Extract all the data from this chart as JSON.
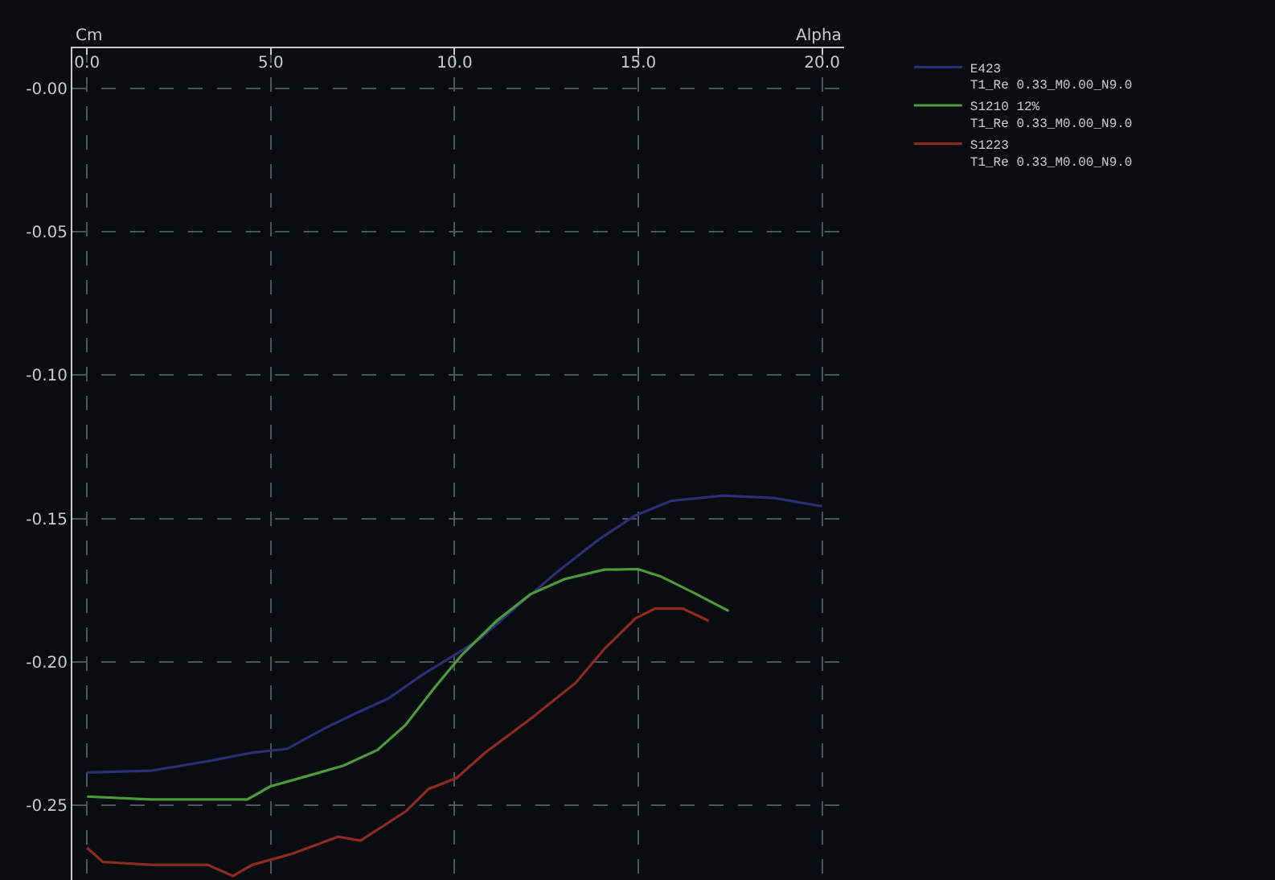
{
  "chart_data": {
    "type": "line",
    "xlabel": "Alpha",
    "ylabel": "Cm",
    "xlim": [
      -0.4,
      20.6
    ],
    "ylim": [
      -0.276,
      0.014
    ],
    "xticks": [
      {
        "value": 0,
        "label": "0.0"
      },
      {
        "value": 5,
        "label": "5.0"
      },
      {
        "value": 10,
        "label": "10.0"
      },
      {
        "value": 15,
        "label": "15.0"
      },
      {
        "value": 20,
        "label": "20.0"
      }
    ],
    "yticks": [
      {
        "value": 0,
        "label": "-0.00"
      },
      {
        "value": -0.05,
        "label": "-0.05"
      },
      {
        "value": -0.1,
        "label": "-0.10"
      },
      {
        "value": -0.15,
        "label": "-0.15"
      },
      {
        "value": -0.2,
        "label": "-0.20"
      },
      {
        "value": -0.25,
        "label": "-0.25"
      }
    ],
    "grid": true,
    "legend": "right",
    "marker": "none",
    "line_style": "solid",
    "series": [
      {
        "name": "E423\nT1_Re 0.33_M0.00_N9.0",
        "color": "#2e2e78",
        "x": [
          0,
          1.74,
          3.28,
          4.5,
          5.44,
          6.5,
          7.29,
          8.2,
          9.14,
          10.06,
          10.68,
          11.76,
          12.83,
          13.91,
          14.9,
          15.9,
          17.3,
          18.7,
          20
        ],
        "values": [
          -0.2385,
          -0.2379,
          -0.2346,
          -0.2316,
          -0.2303,
          -0.2229,
          -0.218,
          -0.2127,
          -0.2043,
          -0.1971,
          -0.192,
          -0.1799,
          -0.1682,
          -0.1574,
          -0.149,
          -0.1438,
          -0.142,
          -0.1428,
          -0.1457
        ]
      },
      {
        "name": "S1210 12%\nT1_Re 0.33_M0.00_N9.0",
        "color": "#4c9a3c",
        "x": [
          0,
          1.74,
          4.36,
          4.98,
          6.06,
          6.98,
          7.9,
          8.67,
          9.44,
          10.2,
          11.14,
          12.06,
          12.99,
          14.07,
          14.99,
          15.6,
          16.53,
          17.46
        ],
        "values": [
          -0.2469,
          -0.2479,
          -0.2479,
          -0.2434,
          -0.2395,
          -0.2361,
          -0.2307,
          -0.2219,
          -0.2092,
          -0.1975,
          -0.1857,
          -0.1764,
          -0.1711,
          -0.1678,
          -0.1676,
          -0.1701,
          -0.176,
          -0.1822
        ]
      },
      {
        "name": "S1223\nT1_Re 0.33_M0.00_N9.0",
        "color": "#8e2a22",
        "x": [
          0,
          0.43,
          1.74,
          3.28,
          3.97,
          4.5,
          5.59,
          6.83,
          7.44,
          8.67,
          9.29,
          10.06,
          10.83,
          12.06,
          13.3,
          14.07,
          14.92,
          15.45,
          16.22,
          16.92
        ],
        "values": [
          -0.2648,
          -0.2697,
          -0.2707,
          -0.2707,
          -0.2746,
          -0.2707,
          -0.2668,
          -0.2609,
          -0.2623,
          -0.2521,
          -0.2443,
          -0.2404,
          -0.2316,
          -0.2199,
          -0.2072,
          -0.1955,
          -0.1848,
          -0.1814,
          -0.1814,
          -0.1857
        ]
      }
    ]
  }
}
